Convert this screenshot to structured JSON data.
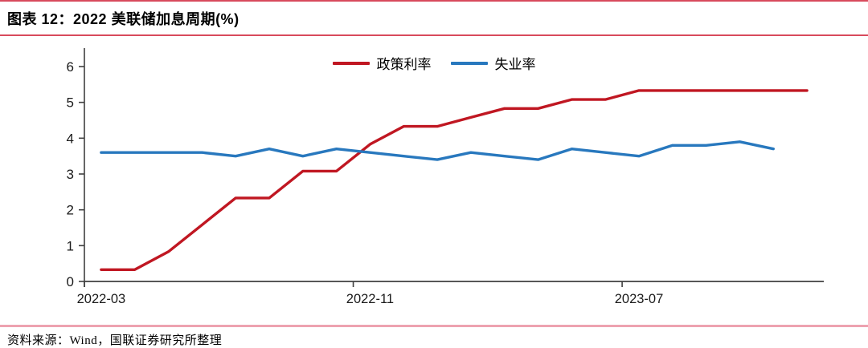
{
  "header": {
    "title": "图表 12：2022 美联储加息周期(%)"
  },
  "footer": {
    "source": "资料来源：Wind，国联证券研究所整理"
  },
  "colors": {
    "policy_rate": "#c01722",
    "unemployment": "#2878be",
    "rule_red": "#d84a5c",
    "rule_pink": "#eda2b0",
    "axis": "#404040",
    "tick_text": "#1a1a1a"
  },
  "chart_data": {
    "type": "line",
    "title": "2022 美联储加息周期(%)",
    "xlabel": "",
    "ylabel": "",
    "ylim": [
      0,
      6
    ],
    "yticks": [
      0,
      1,
      2,
      3,
      4,
      5,
      6
    ],
    "xtick_labels": [
      "2022-03",
      "2022-11",
      "2023-07"
    ],
    "grid": false,
    "legend_position": "top-center",
    "categories": [
      "2022-03",
      "2022-04",
      "2022-05",
      "2022-06",
      "2022-07",
      "2022-08",
      "2022-09",
      "2022-10",
      "2022-11",
      "2022-12",
      "2023-01",
      "2023-02",
      "2023-03",
      "2023-04",
      "2023-05",
      "2023-06",
      "2023-07",
      "2023-08",
      "2023-09",
      "2023-10",
      "2023-11",
      "2023-12"
    ],
    "series": [
      {
        "name": "政策利率",
        "color": "#c01722",
        "values": [
          0.33,
          0.33,
          0.83,
          1.58,
          2.33,
          2.33,
          3.08,
          3.08,
          3.83,
          4.33,
          4.33,
          4.58,
          4.83,
          4.83,
          5.08,
          5.08,
          5.33,
          5.33,
          5.33,
          5.33,
          5.33,
          5.33
        ]
      },
      {
        "name": "失业率",
        "color": "#2878be",
        "values": [
          3.6,
          3.6,
          3.6,
          3.6,
          3.5,
          3.7,
          3.5,
          3.7,
          3.6,
          3.5,
          3.4,
          3.6,
          3.5,
          3.4,
          3.7,
          3.6,
          3.5,
          3.8,
          3.8,
          3.9,
          3.7
        ]
      }
    ]
  }
}
